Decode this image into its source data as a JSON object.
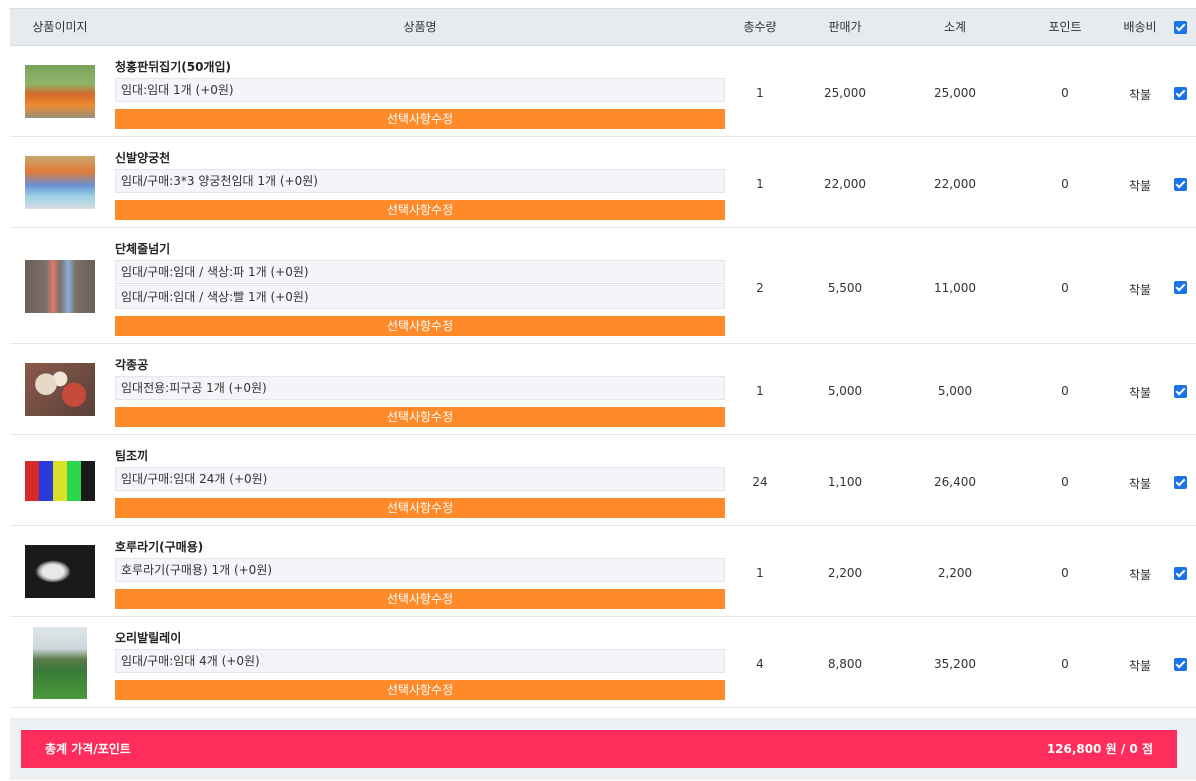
{
  "columns": {
    "image": "상품이미지",
    "name": "상품명",
    "qty": "총수량",
    "price": "판매가",
    "subtotal": "소계",
    "point": "포인트",
    "shipping": "배송비"
  },
  "edit_label": "선택사항수정",
  "items": [
    {
      "name": "청홍판뒤집기(50개입)",
      "options": [
        "임대:임대 1개 (+0원)"
      ],
      "qty": "1",
      "price": "25,000",
      "subtotal": "25,000",
      "point": "0",
      "shipping": "착불"
    },
    {
      "name": "신발양궁천",
      "options": [
        "임대/구매:3*3 양궁천임대 1개 (+0원)"
      ],
      "qty": "1",
      "price": "22,000",
      "subtotal": "22,000",
      "point": "0",
      "shipping": "착불"
    },
    {
      "name": "단체줄넘기",
      "options": [
        "임대/구매:임대 / 색상:파 1개 (+0원)",
        "임대/구매:임대 / 색상:빨 1개 (+0원)"
      ],
      "qty": "2",
      "price": "5,500",
      "subtotal": "11,000",
      "point": "0",
      "shipping": "착불"
    },
    {
      "name": "각종공",
      "options": [
        "임대전용:피구공 1개 (+0원)"
      ],
      "qty": "1",
      "price": "5,000",
      "subtotal": "5,000",
      "point": "0",
      "shipping": "착불"
    },
    {
      "name": "팀조끼",
      "options": [
        "임대/구매:임대 24개 (+0원)"
      ],
      "qty": "24",
      "price": "1,100",
      "subtotal": "26,400",
      "point": "0",
      "shipping": "착불"
    },
    {
      "name": "호루라기(구매용)",
      "options": [
        "호루라기(구매용) 1개 (+0원)"
      ],
      "qty": "1",
      "price": "2,200",
      "subtotal": "2,200",
      "point": "0",
      "shipping": "착불"
    },
    {
      "name": "오리발릴레이",
      "options": [
        "임대/구매:임대 4개 (+0원)"
      ],
      "qty": "4",
      "price": "8,800",
      "subtotal": "35,200",
      "point": "0",
      "shipping": "착불"
    }
  ],
  "total": {
    "label": "총계 가격/포인트",
    "value": "126,800 원 / 0 점"
  },
  "colors": {
    "edit_button": "#ff8a29",
    "total_bar": "#ff2d5c",
    "checkbox": "#1a73e8"
  }
}
